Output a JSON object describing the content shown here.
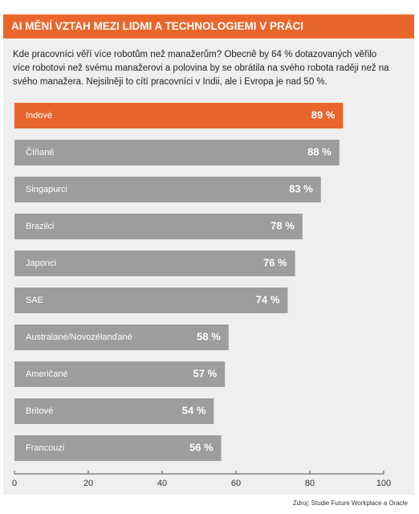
{
  "chart_data": {
    "type": "hbar",
    "title": "AI MĚNÍ VZTAH MEZI LIDMI A TECHNOLOGIEMI V PRÁCI",
    "subtitle": "Kde pracovníci věří více robotům než manažerům? Obecně by 64 % dotazovaných věřilo více robotovi než svému manažerovi a polovina by se obrátila na svého robota raději než na svého manažera. Nejsilněji to cítí pracovníci v Indii, ale i Evropa je nad 50 %.",
    "categories": [
      "Indové",
      "Číňané",
      "Singapurci",
      "Brazilci",
      "Japonci",
      "SAE",
      "Australané/Novozélanďané",
      "Američané",
      "Britové",
      "Francouzi"
    ],
    "values": [
      89,
      88,
      83,
      78,
      76,
      74,
      58,
      57,
      54,
      56
    ],
    "value_labels": [
      "89 %",
      "88 %",
      "83 %",
      "78 %",
      "76 %",
      "74 %",
      "58 %",
      "57 %",
      "54 %",
      "56 %"
    ],
    "colors": [
      "#e8662c",
      "#9d9d9d",
      "#9d9d9d",
      "#9d9d9d",
      "#9d9d9d",
      "#9d9d9d",
      "#9d9d9d",
      "#9d9d9d",
      "#9d9d9d",
      "#9d9d9d"
    ],
    "xlim": [
      0,
      100
    ],
    "xticks": [
      0,
      20,
      40,
      60,
      80,
      100
    ],
    "source": "Zdroj: Studie Future Workplace a Oracle"
  }
}
